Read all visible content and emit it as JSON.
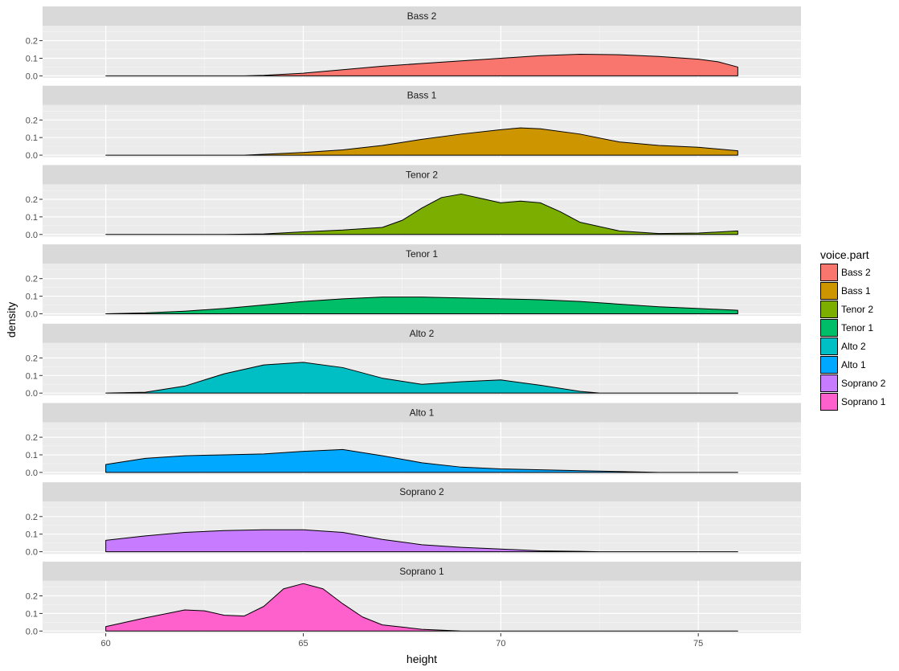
{
  "chart_data": {
    "type": "area",
    "subtype": "faceted-density",
    "xlabel": "height",
    "ylabel": "density",
    "xlim": [
      58.4,
      77.6
    ],
    "ylim": [
      -0.012,
      0.285
    ],
    "x_ticks": [
      60,
      65,
      70,
      75
    ],
    "x_tick_labels": [
      "60",
      "65",
      "70",
      "75"
    ],
    "y_ticks": [
      0.0,
      0.1,
      0.2
    ],
    "y_tick_labels": [
      "0.0",
      "0.1",
      "0.2"
    ],
    "grid": true,
    "legend": {
      "title": "voice.part",
      "position": "right",
      "entries": [
        "Bass 2",
        "Bass 1",
        "Tenor 2",
        "Tenor 1",
        "Alto 2",
        "Alto 1",
        "Soprano 2",
        "Soprano 1"
      ]
    },
    "series": [
      {
        "name": "Bass 2",
        "color": "#F8766D",
        "x": [
          60,
          62,
          63.5,
          64,
          65,
          66,
          67,
          68,
          69,
          70,
          71,
          72,
          73,
          74,
          75,
          75.5,
          76
        ],
        "y": [
          0,
          0,
          0.0,
          0.003,
          0.015,
          0.035,
          0.055,
          0.07,
          0.085,
          0.1,
          0.115,
          0.123,
          0.12,
          0.11,
          0.095,
          0.08,
          0.05
        ]
      },
      {
        "name": "Bass 1",
        "color": "#CD9600",
        "x": [
          60,
          62,
          63.5,
          64,
          65,
          66,
          67,
          68,
          69,
          70,
          70.5,
          71,
          72,
          73,
          74,
          75,
          76
        ],
        "y": [
          0,
          0,
          0.0,
          0.005,
          0.015,
          0.03,
          0.055,
          0.09,
          0.12,
          0.145,
          0.155,
          0.15,
          0.12,
          0.075,
          0.055,
          0.045,
          0.025
        ]
      },
      {
        "name": "Tenor 2",
        "color": "#7CAE00",
        "x": [
          60,
          63,
          64,
          65,
          66,
          67,
          67.5,
          68,
          68.5,
          69,
          69.5,
          70,
          70.5,
          71,
          71.5,
          72,
          73,
          74,
          75,
          76
        ],
        "y": [
          0,
          0,
          0.003,
          0.015,
          0.025,
          0.04,
          0.08,
          0.15,
          0.21,
          0.23,
          0.205,
          0.18,
          0.19,
          0.18,
          0.13,
          0.07,
          0.02,
          0.005,
          0.008,
          0.02
        ]
      },
      {
        "name": "Tenor 1",
        "color": "#00BE67",
        "x": [
          60,
          61,
          62,
          63,
          64,
          65,
          66,
          67,
          68,
          69,
          70,
          71,
          72,
          73,
          74,
          75,
          76
        ],
        "y": [
          0,
          0.005,
          0.015,
          0.03,
          0.05,
          0.07,
          0.085,
          0.095,
          0.095,
          0.09,
          0.085,
          0.08,
          0.07,
          0.055,
          0.04,
          0.03,
          0.02
        ]
      },
      {
        "name": "Alto 2",
        "color": "#00BFC4",
        "x": [
          60,
          61,
          62,
          63,
          64,
          65,
          66,
          67,
          68,
          69,
          70,
          71,
          72,
          72.5,
          73,
          76
        ],
        "y": [
          0,
          0.005,
          0.04,
          0.11,
          0.16,
          0.175,
          0.145,
          0.085,
          0.05,
          0.065,
          0.075,
          0.045,
          0.01,
          0.0,
          0,
          0
        ]
      },
      {
        "name": "Alto 1",
        "color": "#00A9FF",
        "x": [
          60,
          61,
          62,
          63,
          64,
          65,
          66,
          67,
          68,
          69,
          70,
          71,
          72,
          73,
          74,
          75,
          76
        ],
        "y": [
          0.045,
          0.08,
          0.095,
          0.1,
          0.105,
          0.12,
          0.13,
          0.095,
          0.055,
          0.03,
          0.02,
          0.015,
          0.01,
          0.005,
          0.0,
          0,
          0
        ]
      },
      {
        "name": "Soprano 2",
        "color": "#C77CFF",
        "x": [
          60,
          61,
          62,
          63,
          64,
          65,
          66,
          67,
          68,
          69,
          70,
          71,
          72,
          72.5,
          73,
          76
        ],
        "y": [
          0.065,
          0.09,
          0.11,
          0.12,
          0.125,
          0.125,
          0.11,
          0.07,
          0.04,
          0.025,
          0.015,
          0.005,
          0.002,
          0.0,
          0,
          0
        ]
      },
      {
        "name": "Soprano 1",
        "color": "#FF61CC",
        "x": [
          60,
          61,
          62,
          62.5,
          63,
          63.5,
          64,
          64.5,
          65,
          65.5,
          66,
          66.5,
          67,
          68,
          69,
          70,
          76
        ],
        "y": [
          0.025,
          0.075,
          0.12,
          0.115,
          0.09,
          0.085,
          0.14,
          0.24,
          0.27,
          0.24,
          0.155,
          0.08,
          0.035,
          0.01,
          0.0,
          0,
          0
        ]
      }
    ]
  }
}
